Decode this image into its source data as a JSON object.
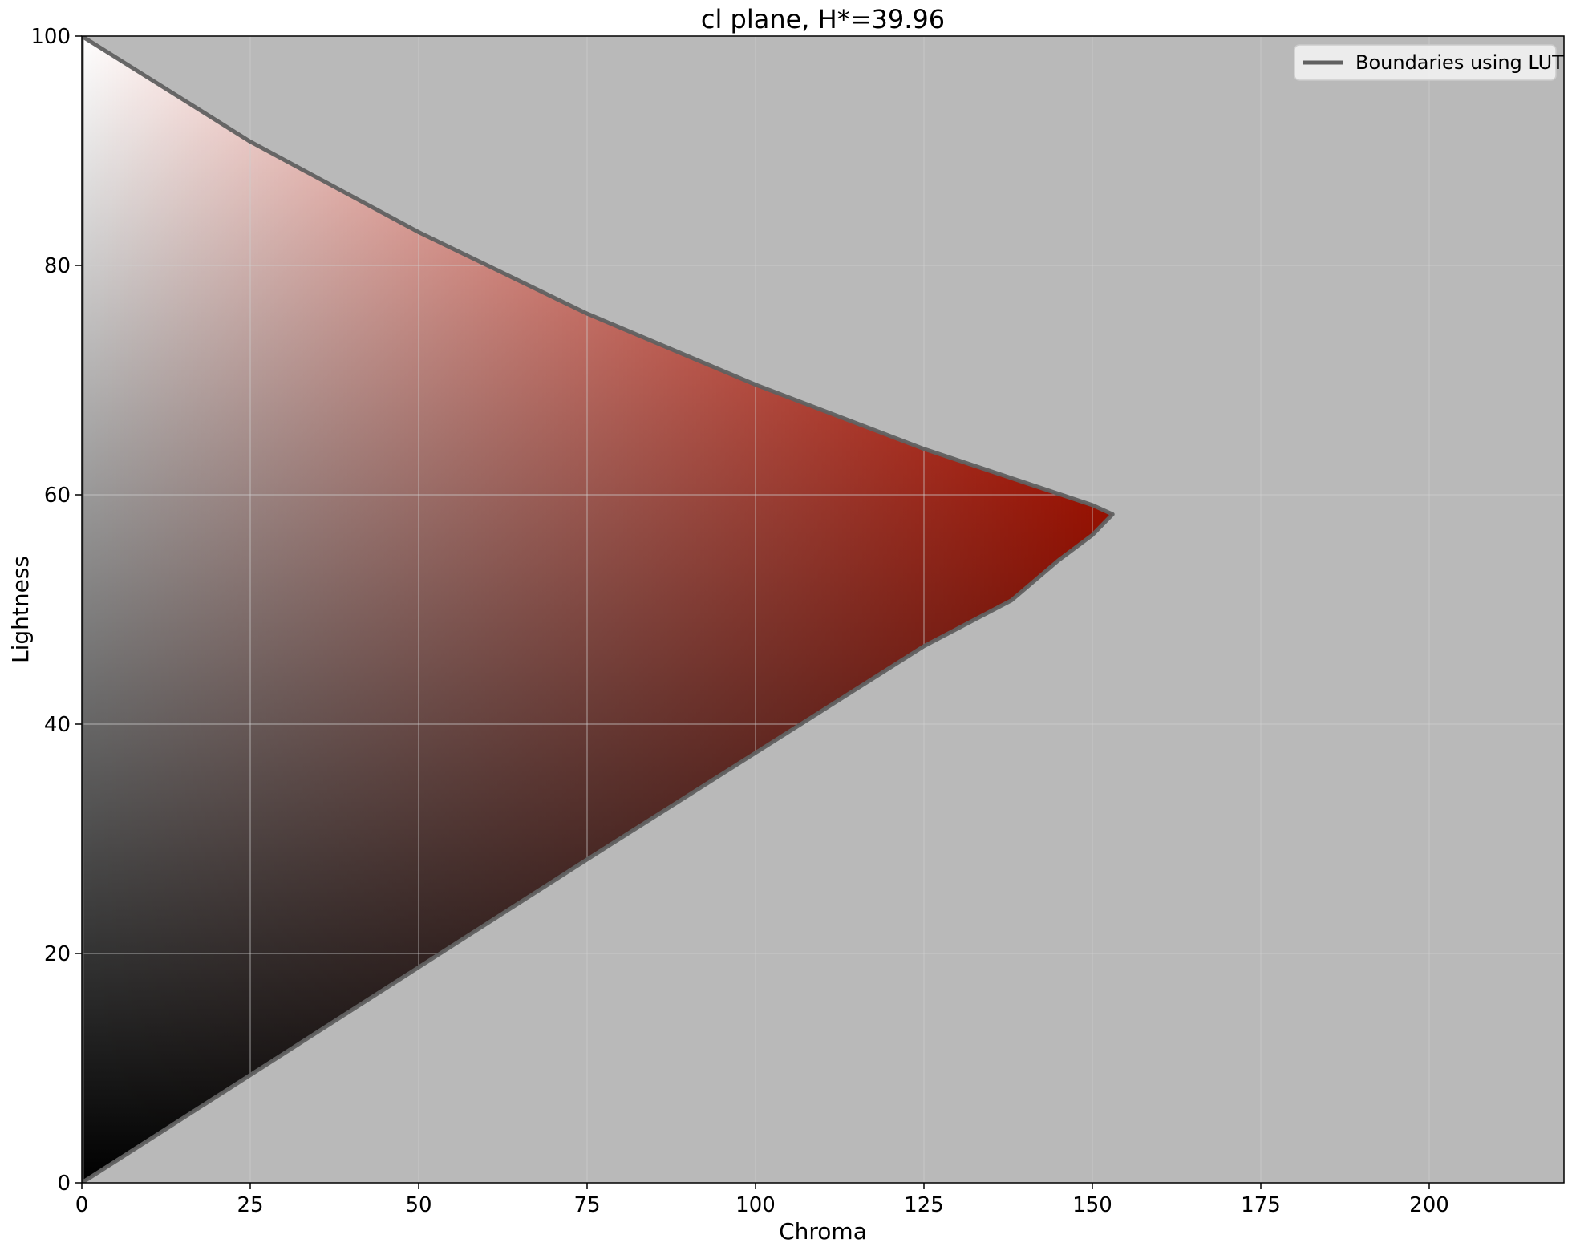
{
  "chart_data": {
    "type": "area",
    "title": "cl plane, H*=39.96",
    "xlabel": "Chroma",
    "ylabel": "Lightness",
    "xlim": [
      0,
      220
    ],
    "ylim": [
      0,
      100
    ],
    "xticks": [
      0,
      25,
      50,
      75,
      100,
      125,
      150,
      175,
      200
    ],
    "yticks": [
      0,
      20,
      40,
      60,
      80,
      100
    ],
    "grid": true,
    "legend_position": "top-right",
    "background_color": "#b9b9b9",
    "hue_color": "#ff1a00",
    "series": [
      {
        "name": "Boundaries using LUT",
        "color": "#606060",
        "x": [
          0,
          25,
          50,
          75,
          100,
          125,
          150,
          153,
          150,
          145,
          138,
          125,
          100,
          75,
          50,
          25,
          0
        ],
        "y": [
          100,
          90.8,
          82.9,
          75.8,
          69.6,
          64.0,
          59.1,
          58.3,
          56.5,
          54.3,
          50.8,
          46.8,
          37.5,
          28.2,
          18.8,
          9.4,
          0
        ]
      }
    ]
  }
}
